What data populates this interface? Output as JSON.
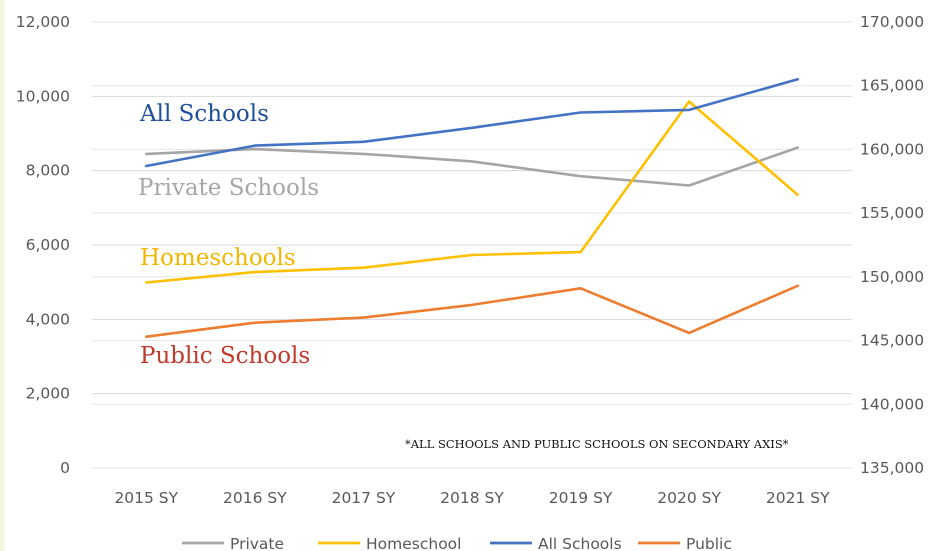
{
  "chart_data": {
    "type": "line",
    "categories": [
      "2015 SY",
      "2016 SY",
      "2017 SY",
      "2018 SY",
      "2019 SY",
      "2020 SY",
      "2021 SY"
    ],
    "y_left": {
      "ylim": [
        0,
        12000
      ],
      "ticks": [
        "0",
        "2,000",
        "4,000",
        "6,000",
        "8,000",
        "10,000",
        "12,000"
      ]
    },
    "y_right": {
      "ylim": [
        135000,
        170000
      ],
      "ticks": [
        "135,000",
        "140,000",
        "145,000",
        "150,000",
        "155,000",
        "160,000",
        "165,000",
        "170,000"
      ]
    },
    "grid": true,
    "legend_position": "bottom",
    "series": [
      {
        "name": "Private",
        "color": "#a5a5a5",
        "axis": "left",
        "values": [
          8450,
          8580,
          8450,
          8250,
          7850,
          7600,
          8620
        ]
      },
      {
        "name": "Homeschool",
        "color": "#ffc000",
        "axis": "left",
        "values": [
          4990,
          5270,
          5390,
          5730,
          5810,
          9860,
          7350
        ]
      },
      {
        "name": "All Schools",
        "color": "#4472c4",
        "axis": "right",
        "values": [
          158700,
          160300,
          160600,
          161700,
          162900,
          163100,
          165500
        ]
      },
      {
        "name": "Public",
        "color": "#ed7d31",
        "axis": "right",
        "values": [
          145300,
          146400,
          146800,
          147800,
          149100,
          145600,
          149300
        ]
      }
    ],
    "annotations": [
      {
        "text": "All Schools",
        "color": "#1f4e9c"
      },
      {
        "text": "Private Schools",
        "color": "#a6a6a6"
      },
      {
        "text": "Homeschools",
        "color": "#f2b600"
      },
      {
        "text": "Public Schools",
        "color": "#c0392b"
      },
      {
        "text": "*ALL SCHOOLS AND PUBLIC SCHOOLS ON SECONDARY AXIS*",
        "color": "#111111"
      }
    ]
  }
}
